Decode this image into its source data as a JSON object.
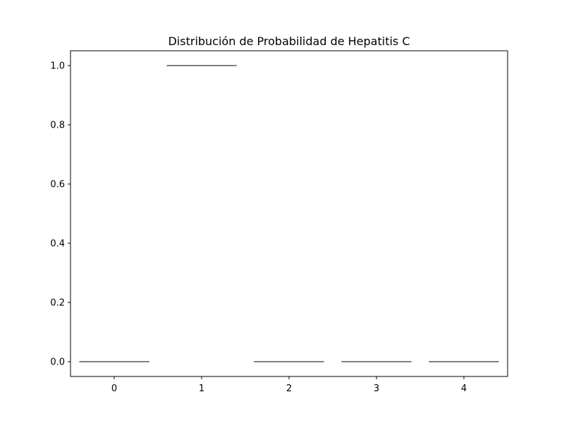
{
  "chart_data": {
    "type": "boxplot",
    "title": "Distribución de Probabilidad de Hepatitis C",
    "xlabel": "",
    "ylabel": "",
    "categories": [
      "0",
      "1",
      "2",
      "3",
      "4"
    ],
    "values": [
      0.0,
      1.0,
      0.0,
      0.0,
      0.0
    ],
    "ylim": [
      -0.05,
      1.05
    ],
    "yticks": [
      "0.0",
      "0.2",
      "0.4",
      "0.6",
      "0.8",
      "1.0"
    ],
    "ytick_values": [
      0.0,
      0.2,
      0.4,
      0.6,
      0.8,
      1.0
    ],
    "grid": false,
    "colors": {
      "line": "#333333",
      "axis": "#000000"
    }
  }
}
